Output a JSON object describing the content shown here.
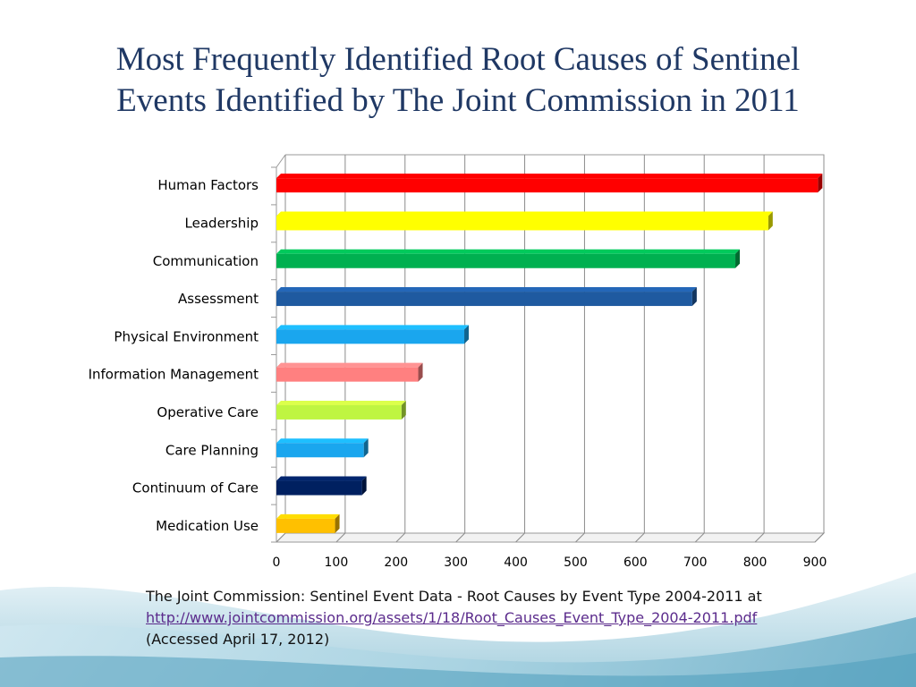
{
  "title": {
    "line1": "Most Frequently Identified Root Causes of Sentinel",
    "line2": "Events Identified by The Joint Commission in 2011"
  },
  "chart_data": {
    "type": "bar",
    "orientation": "horizontal",
    "title": "Most Frequently Identified Root Causes of Sentinel Events Identified by The Joint Commission in 2011",
    "xlabel": "",
    "ylabel": "",
    "xlim": [
      0,
      900
    ],
    "ticks": [
      "0",
      "100",
      "200",
      "300",
      "400",
      "500",
      "600",
      "700",
      "800",
      "900"
    ],
    "grid": true,
    "categories": [
      "Human Factors",
      "Leadership",
      "Communication",
      "Assessment",
      "Physical Environment",
      "Information Management",
      "Operative Care",
      "Care Planning",
      "Continuum of Care",
      "Medication Use"
    ],
    "values": [
      905,
      822,
      767,
      695,
      314,
      237,
      209,
      146,
      143,
      98
    ],
    "colors": [
      "#ff0000",
      "#ffff00",
      "#00b050",
      "#1f5aa0",
      "#1aa6ee",
      "#ff8080",
      "#bff541",
      "#1aa6ee",
      "#002060",
      "#ffc000"
    ]
  },
  "citation": {
    "line1": "The Joint Commission: Sentinel Event Data - Root Causes by Event Type 2004-2011 at",
    "link": "http://www.jointcommission.org/assets/1/18/Root_Causes_Event_Type_2004-2011.pdf ",
    "line3": "(Accessed April 17, 2012)"
  }
}
